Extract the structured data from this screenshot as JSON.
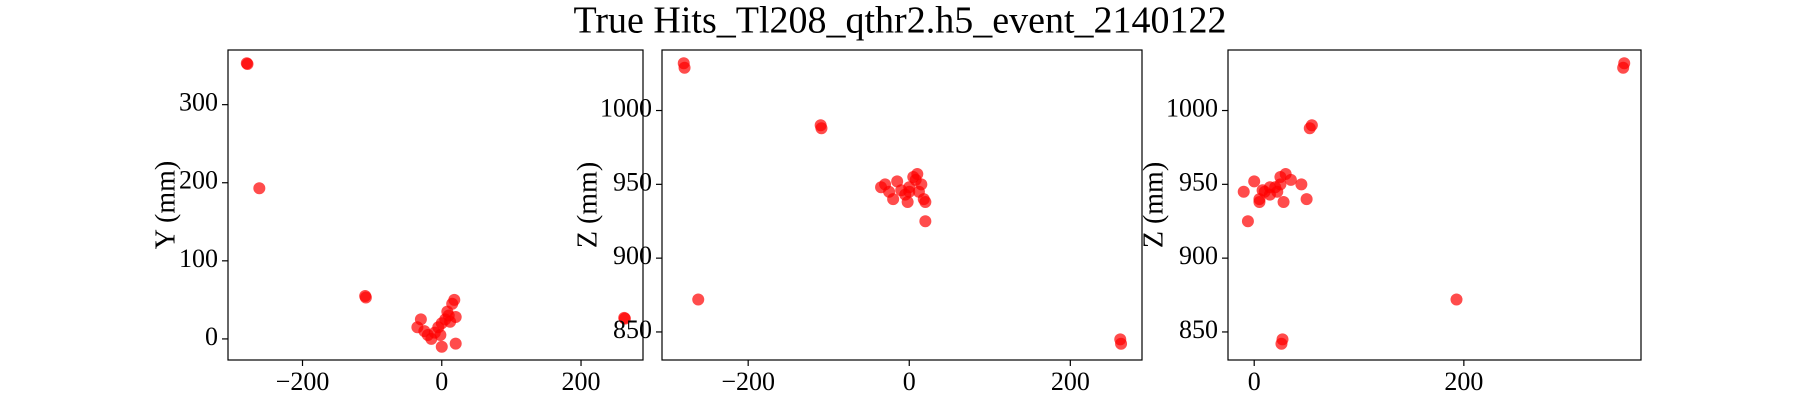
{
  "title": "True Hits_Tl208_qthr2.h5_event_2140122",
  "chart_data": [
    {
      "type": "scatter",
      "y_label": "Y (mm)",
      "color": "#ff0000",
      "x": [
        -280,
        -279,
        -262,
        -110,
        -109,
        262,
        263,
        20,
        0,
        -35,
        -30,
        -25,
        -20,
        -15,
        -10,
        -5,
        0,
        5,
        10,
        15,
        18,
        20,
        12,
        8,
        -2
      ],
      "y": [
        353,
        352,
        193,
        55,
        53,
        27,
        26,
        -6,
        -10,
        15,
        25,
        10,
        5,
        0,
        8,
        15,
        20,
        25,
        30,
        45,
        50,
        28,
        22,
        35,
        5
      ],
      "xlim": [
        -307,
        289
      ],
      "ylim": [
        -27,
        370
      ],
      "xticks": [
        {
          "value": -200,
          "label": "−200"
        },
        0,
        200
      ],
      "yticks": [
        0,
        100,
        200,
        300
      ]
    },
    {
      "type": "scatter",
      "y_label": "Z (mm)",
      "color": "#ff0000",
      "x": [
        -280,
        -279,
        -262,
        -110,
        -109,
        262,
        263,
        20,
        0,
        -35,
        -30,
        -25,
        -20,
        -15,
        -10,
        -5,
        0,
        5,
        10,
        15,
        18,
        20,
        12,
        8,
        -2
      ],
      "y": [
        1032,
        1029,
        872,
        990,
        988,
        845,
        842,
        925,
        945,
        948,
        950,
        945,
        940,
        952,
        946,
        943,
        948,
        955,
        957,
        950,
        940,
        938,
        945,
        953,
        938
      ],
      "xlim": [
        -307,
        289
      ],
      "ylim": [
        831,
        1041
      ],
      "xticks": [
        {
          "value": -200,
          "label": "−200"
        },
        0,
        200
      ],
      "yticks": [
        850,
        900,
        950,
        1000
      ]
    },
    {
      "type": "scatter",
      "y_label": "Z (mm)",
      "color": "#ff0000",
      "x": [
        353,
        352,
        193,
        55,
        53,
        27,
        26,
        -6,
        -10,
        15,
        25,
        10,
        5,
        0,
        8,
        15,
        20,
        25,
        30,
        45,
        50,
        28,
        22,
        35,
        5
      ],
      "y": [
        1032,
        1029,
        872,
        990,
        988,
        845,
        842,
        925,
        945,
        948,
        950,
        945,
        940,
        952,
        946,
        943,
        948,
        955,
        957,
        950,
        940,
        938,
        945,
        953,
        938
      ],
      "xlim": [
        -25,
        369
      ],
      "ylim": [
        831,
        1041
      ],
      "xticks": [
        0,
        200
      ],
      "yticks": [
        850,
        900,
        950,
        1000
      ]
    }
  ]
}
